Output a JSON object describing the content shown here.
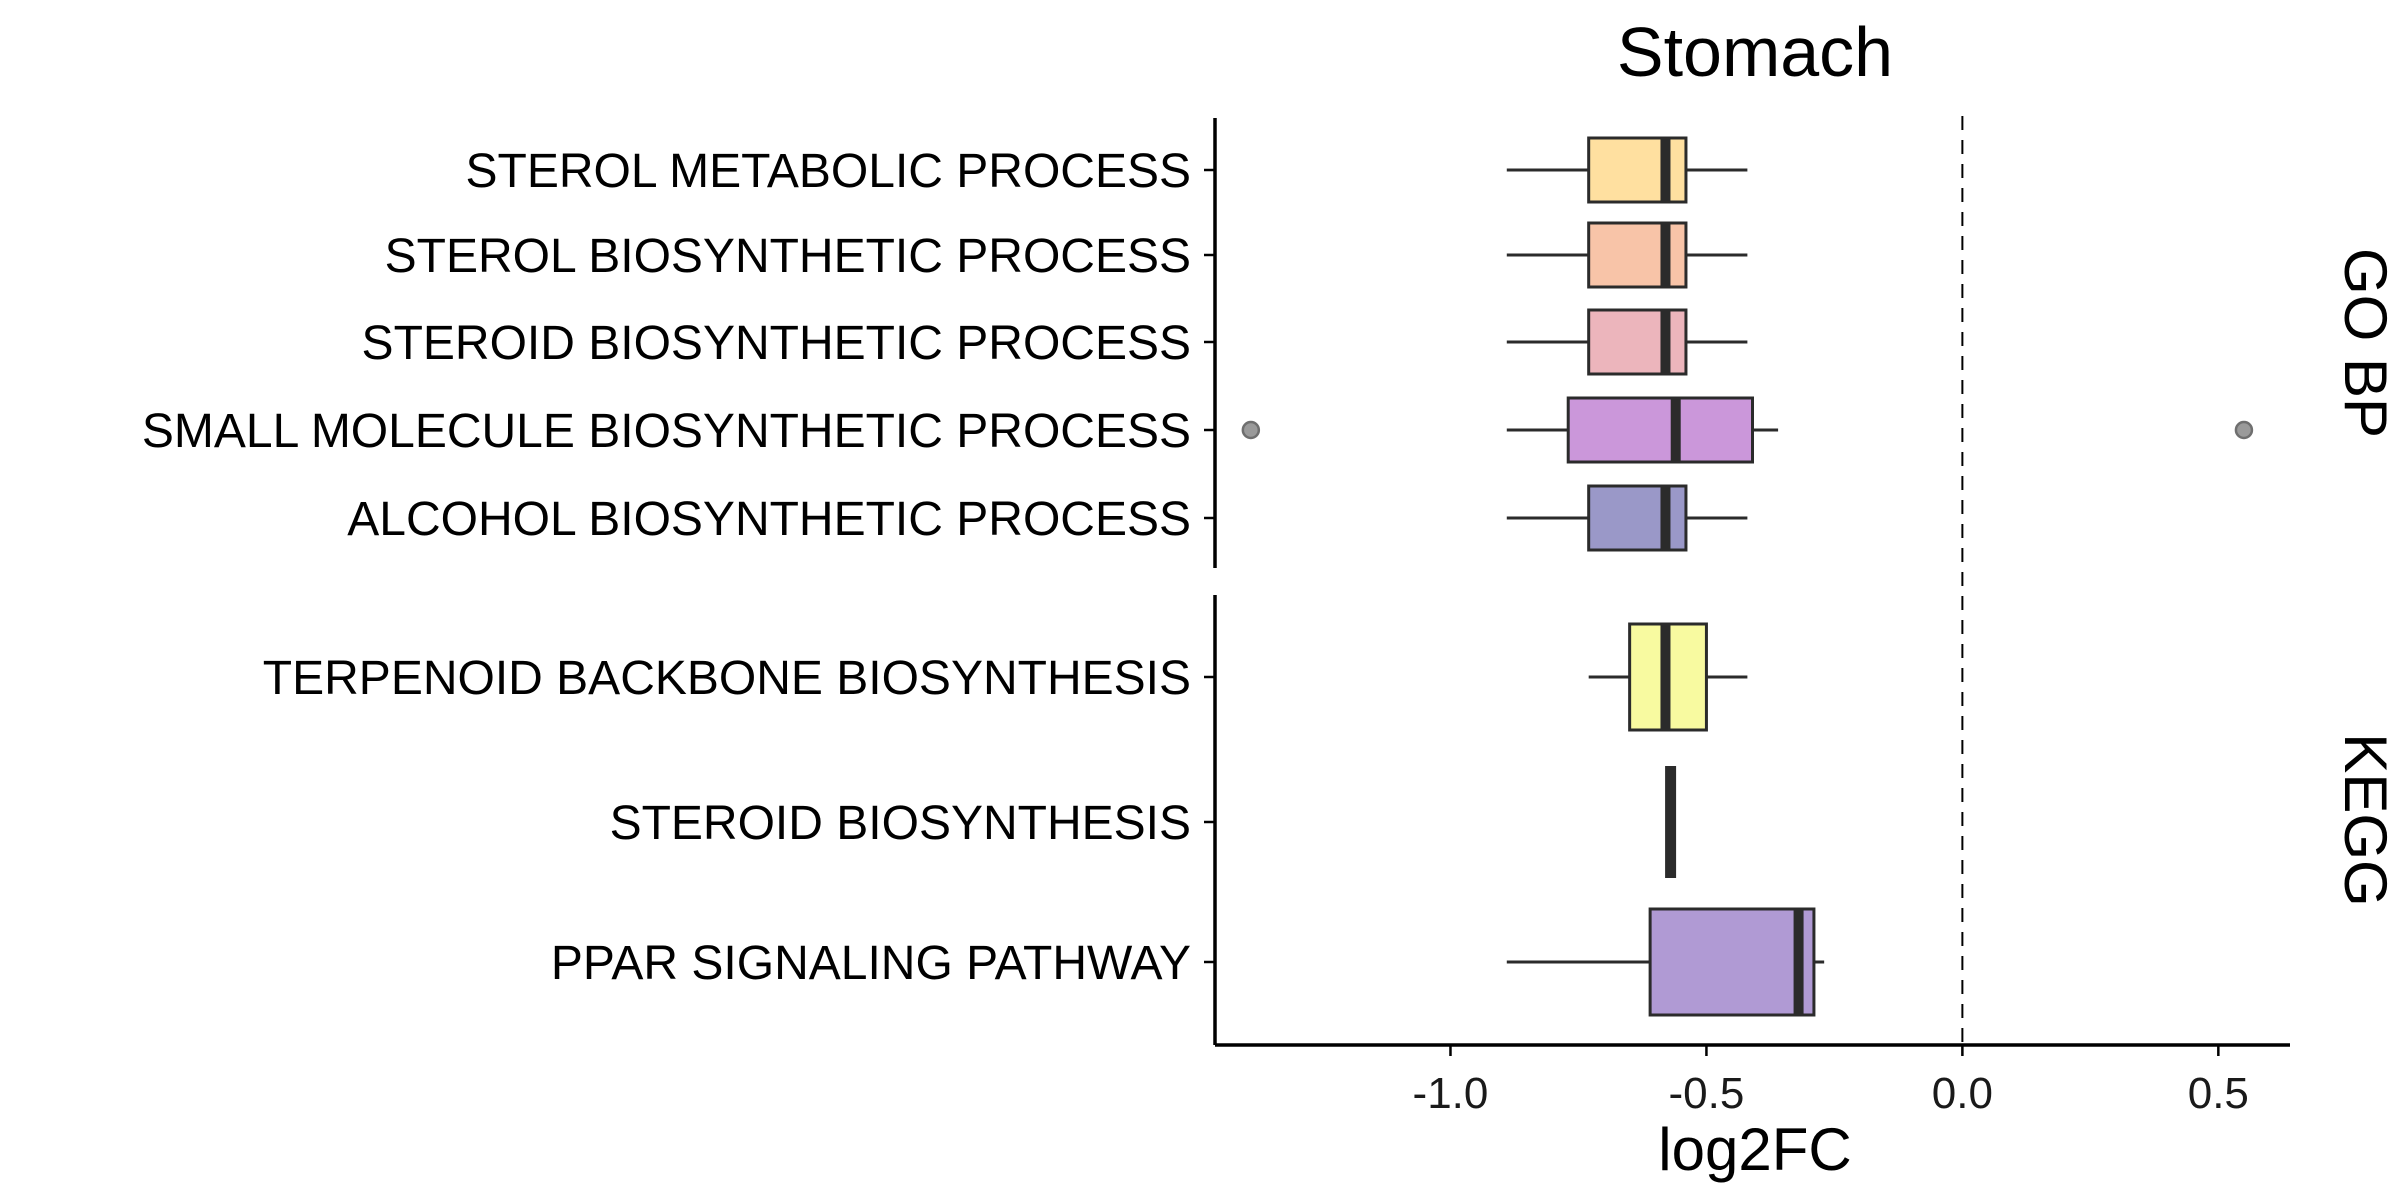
{
  "chart_data": {
    "type": "boxplot",
    "title": "Stomach",
    "xlabel": "log2FC",
    "ylabel": "",
    "xlim": [
      -1.46,
      0.64
    ],
    "x_ticks": [
      -1.0,
      -0.5,
      0.0,
      0.5
    ],
    "x_tick_labels": [
      "-1.0",
      "-0.5",
      "0.0",
      "0.5"
    ],
    "reference_line": {
      "x": 0.0,
      "style": "dashed"
    },
    "grid": false,
    "legend": "none",
    "facets": [
      {
        "name": "GO BP",
        "categories": [
          {
            "label": "STEROL METABOLIC PROCESS",
            "min": -0.89,
            "q1": -0.73,
            "median": -0.58,
            "q3": -0.54,
            "max": -0.42,
            "outliers": [],
            "color": "#FFE0A0"
          },
          {
            "label": "STEROL BIOSYNTHETIC PROCESS",
            "min": -0.89,
            "q1": -0.73,
            "median": -0.58,
            "q3": -0.54,
            "max": -0.42,
            "outliers": [],
            "color": "#F8C4A8"
          },
          {
            "label": "STEROID BIOSYNTHETIC PROCESS",
            "min": -0.89,
            "q1": -0.73,
            "median": -0.58,
            "q3": -0.54,
            "max": -0.42,
            "outliers": [],
            "color": "#ECB5BC"
          },
          {
            "label": "SMALL MOLECULE BIOSYNTHETIC PROCESS",
            "min": -0.89,
            "q1": -0.77,
            "median": -0.56,
            "q3": -0.41,
            "max": -0.36,
            "outliers": [
              -1.39,
              0.55
            ],
            "color": "#CB97DA"
          },
          {
            "label": "ALCOHOL BIOSYNTHETIC PROCESS",
            "min": -0.89,
            "q1": -0.73,
            "median": -0.58,
            "q3": -0.54,
            "max": -0.42,
            "outliers": [],
            "color": "#9A98C8"
          }
        ]
      },
      {
        "name": "KEGG",
        "categories": [
          {
            "label": "TERPENOID BACKBONE BIOSYNTHESIS",
            "min": -0.73,
            "q1": -0.65,
            "median": -0.58,
            "q3": -0.5,
            "max": -0.42,
            "outliers": [],
            "color": "#F8FAA0"
          },
          {
            "label": "STEROID BIOSYNTHESIS",
            "min": -0.57,
            "q1": -0.57,
            "median": -0.57,
            "q3": -0.57,
            "max": -0.57,
            "outliers": [],
            "color": "#2b2b2b"
          },
          {
            "label": "PPAR SIGNALING PATHWAY",
            "min": -0.89,
            "q1": -0.61,
            "median": -0.32,
            "q3": -0.29,
            "max": -0.27,
            "outliers": [],
            "color": "#B09AD4"
          }
        ]
      }
    ]
  }
}
